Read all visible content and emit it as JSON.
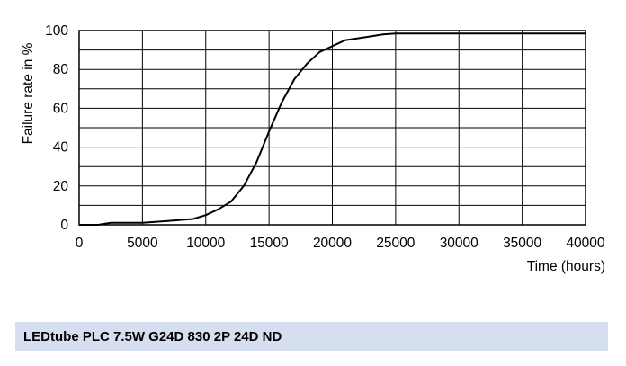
{
  "product_name": "LEDtube PLC 7.5W G24D 830 2P 24D ND",
  "chart_data": {
    "type": "line",
    "title": "",
    "xlabel": "Time (hours)",
    "ylabel": "Failure rate in %",
    "xlim": [
      0,
      40000
    ],
    "ylim": [
      0,
      100
    ],
    "x_ticks": [
      0,
      5000,
      10000,
      15000,
      20000,
      25000,
      30000,
      35000,
      40000
    ],
    "y_ticks": [
      0,
      20,
      40,
      60,
      80,
      100
    ],
    "grid": true,
    "legend": "none",
    "line_color": "#000000",
    "series": [
      {
        "x": [
          0,
          1500,
          2500,
          3000,
          4000,
          5000,
          6000,
          7000,
          8000,
          9000,
          10000,
          11000,
          12000,
          13000,
          14000,
          15000,
          16000,
          17000,
          18000,
          19000,
          20000,
          21000,
          22000,
          23000,
          24000,
          25000,
          27000,
          30000,
          35000,
          40000
        ],
        "y": [
          0,
          0,
          1,
          1,
          1,
          1,
          1.5,
          2,
          2.5,
          3,
          5,
          8,
          12,
          20,
          32,
          48,
          63,
          75,
          83,
          89,
          92,
          95,
          96,
          97,
          98,
          98.5,
          98.5,
          98.5,
          98.5,
          98.5
        ]
      }
    ]
  }
}
